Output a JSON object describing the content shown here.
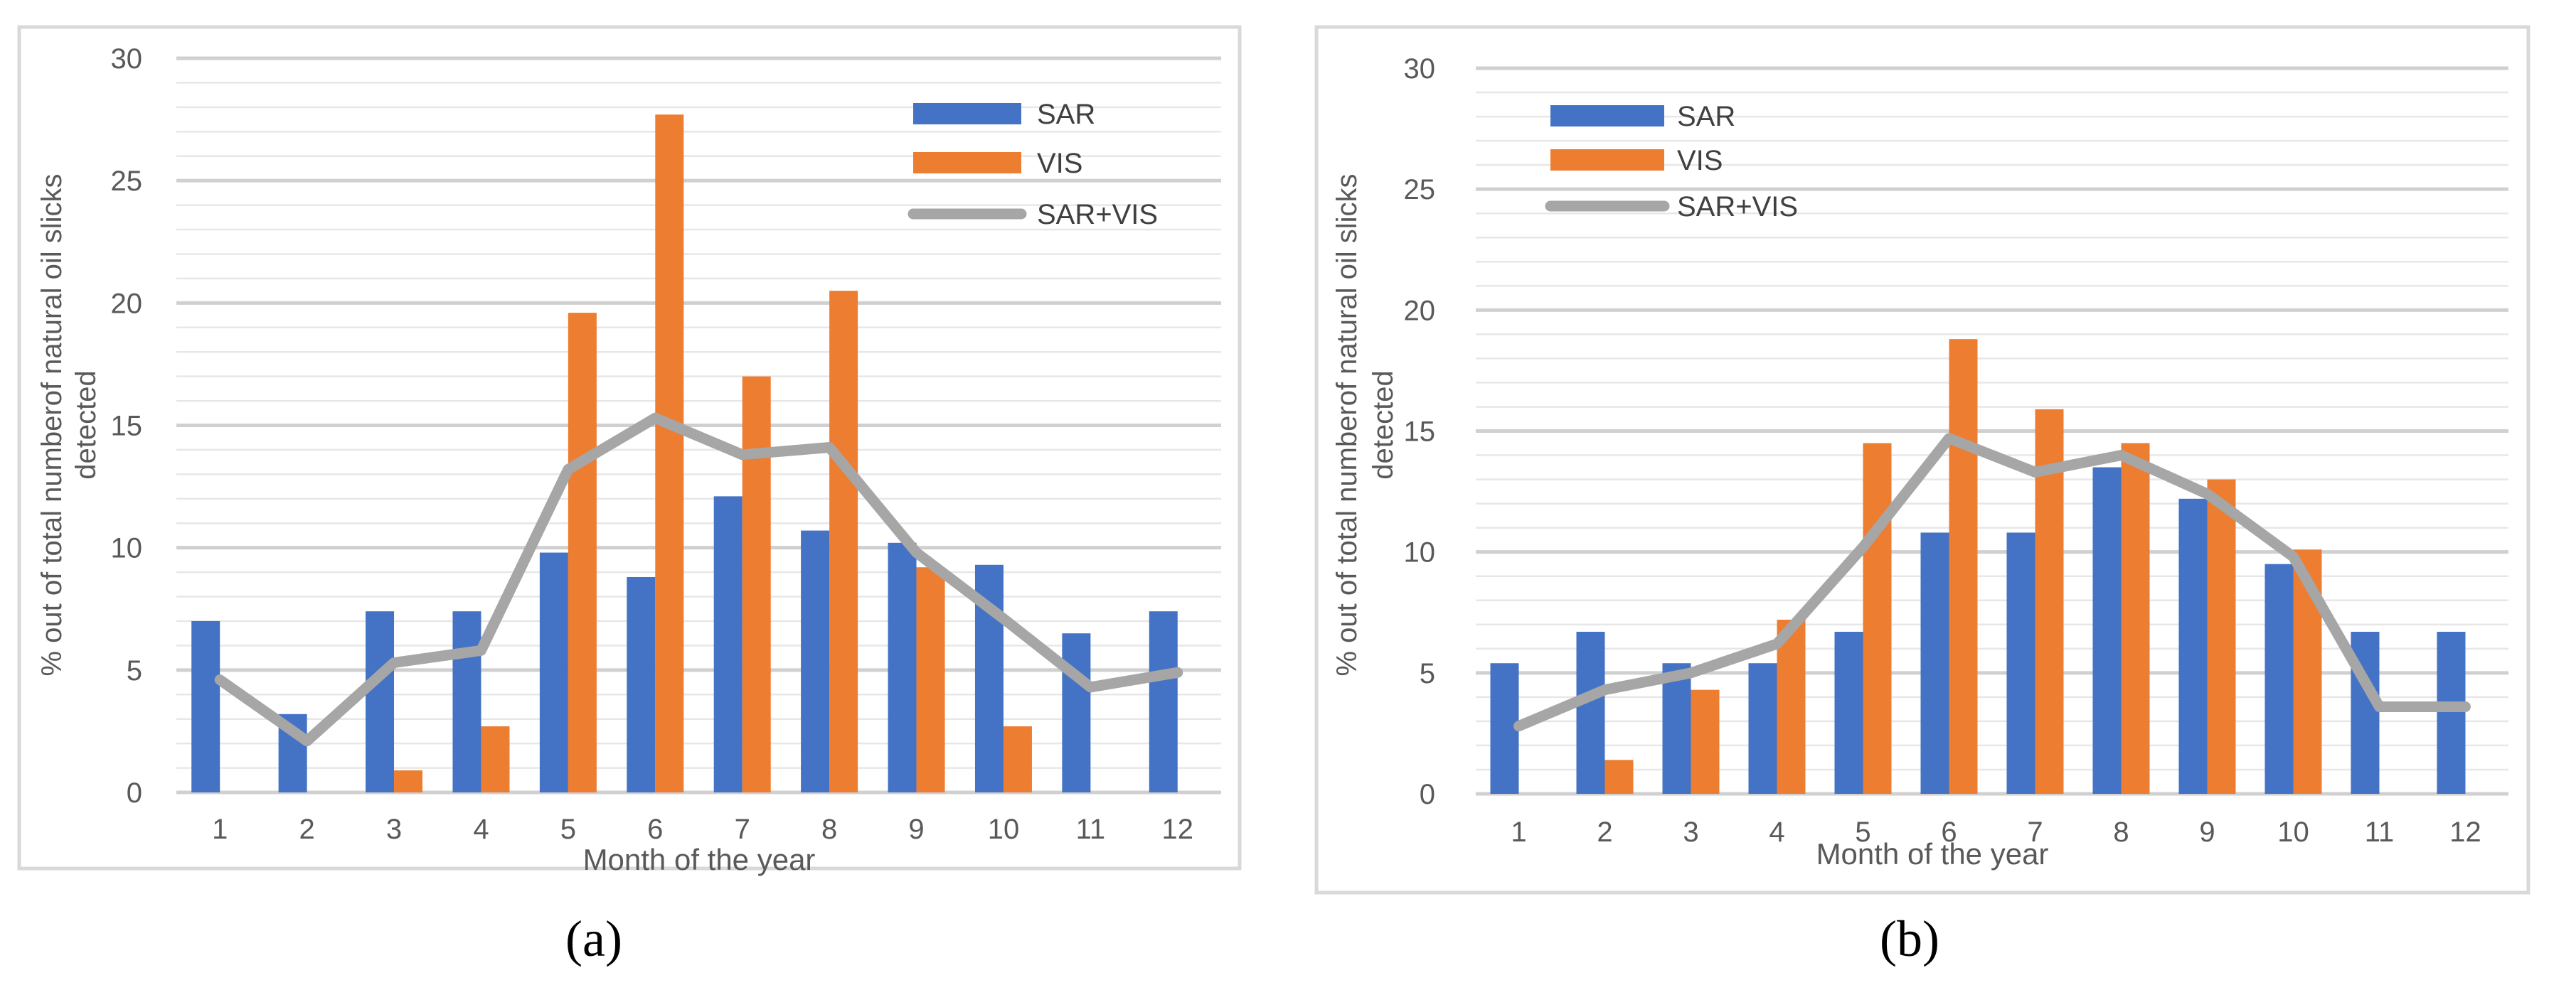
{
  "charts": [
    {
      "panel_label": "(a)",
      "chart_data": {
        "type": "bar",
        "title": "",
        "xlabel": "Month of the year",
        "ylabel_lines": [
          "% out of total numberof  natural oil slicks",
          "detected"
        ],
        "categories": [
          "1",
          "2",
          "3",
          "4",
          "5",
          "6",
          "7",
          "8",
          "9",
          "10",
          "11",
          "12"
        ],
        "yticks": [
          "0",
          "5",
          "10",
          "15",
          "20",
          "25",
          "30"
        ],
        "ylim": [
          0,
          30
        ],
        "series": [
          {
            "name": "SAR",
            "kind": "bar",
            "color": "#4472c4",
            "values": [
              7.0,
              3.2,
              7.4,
              7.4,
              9.8,
              8.8,
              12.1,
              10.7,
              10.2,
              9.3,
              6.5,
              7.4
            ]
          },
          {
            "name": "VIS",
            "kind": "bar",
            "color": "#ed7d31",
            "values": [
              0,
              0,
              0.9,
              2.7,
              19.6,
              27.7,
              17.0,
              20.5,
              9.2,
              2.7,
              0,
              0
            ]
          },
          {
            "name": "SAR+VIS",
            "kind": "line",
            "color": "#a6a6a6",
            "values": [
              4.6,
              2.1,
              5.3,
              5.8,
              13.2,
              15.3,
              13.8,
              14.1,
              9.8,
              7.1,
              4.3,
              4.9
            ]
          }
        ],
        "legend": "top-right",
        "grid": true
      }
    },
    {
      "panel_label": "(b)",
      "chart_data": {
        "type": "bar",
        "title": "",
        "xlabel": "Month of the year",
        "ylabel_lines": [
          "% out of total numberof  natural oil slicks",
          "detected"
        ],
        "categories": [
          "1",
          "2",
          "3",
          "4",
          "5",
          "6",
          "7",
          "8",
          "9",
          "10",
          "11",
          "12"
        ],
        "yticks": [
          "0",
          "5",
          "10",
          "15",
          "20",
          "25",
          "30"
        ],
        "ylim": [
          0,
          30
        ],
        "series": [
          {
            "name": "SAR",
            "kind": "bar",
            "color": "#4472c4",
            "values": [
              5.4,
              6.7,
              5.4,
              5.4,
              6.7,
              10.8,
              10.8,
              13.5,
              12.2,
              9.5,
              6.7,
              6.7
            ]
          },
          {
            "name": "VIS",
            "kind": "bar",
            "color": "#ed7d31",
            "values": [
              0,
              1.4,
              4.3,
              7.2,
              14.5,
              18.8,
              15.9,
              14.5,
              13.0,
              10.1,
              0,
              0
            ]
          },
          {
            "name": "SAR+VIS",
            "kind": "line",
            "color": "#a6a6a6",
            "values": [
              2.8,
              4.3,
              5.0,
              6.2,
              10.2,
              14.7,
              13.3,
              14.0,
              12.4,
              9.8,
              3.6,
              3.6
            ]
          }
        ],
        "legend": "top-left",
        "grid": true
      }
    }
  ]
}
